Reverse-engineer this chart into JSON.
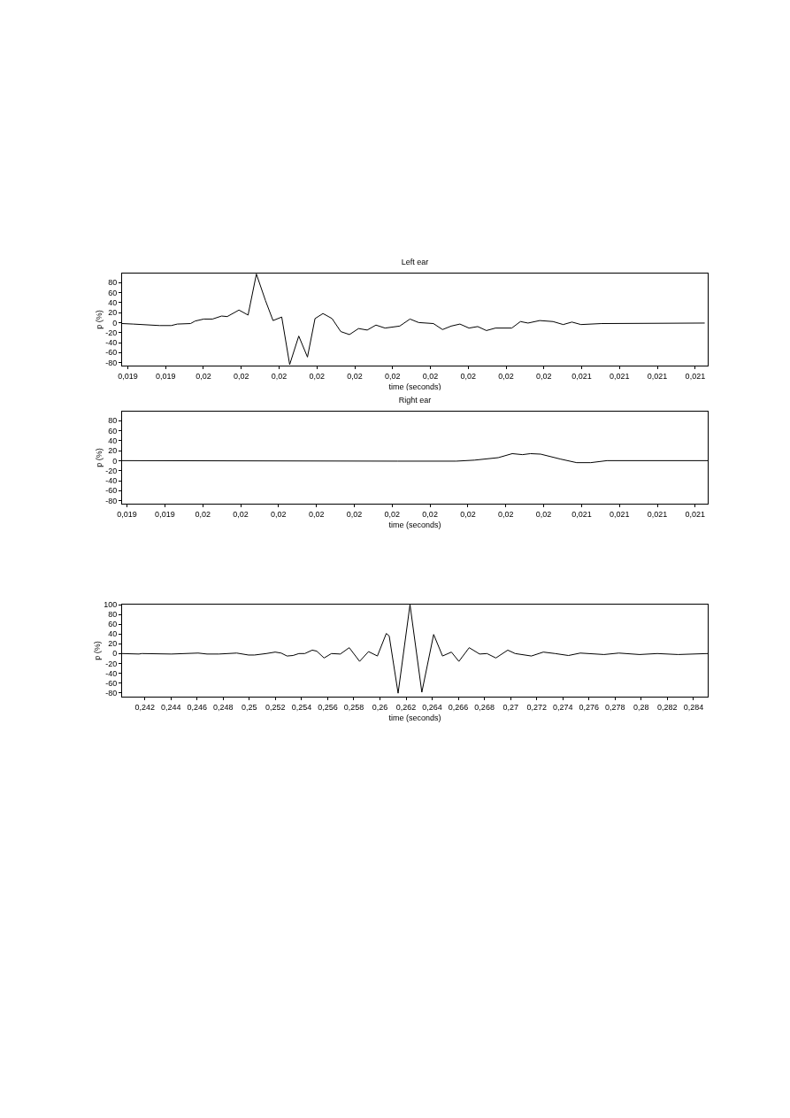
{
  "chart_data": [
    {
      "type": "line",
      "title": "Left ear",
      "xlabel": "time (seconds)",
      "ylabel": "p (%)",
      "color": "#000000",
      "x": [
        0.019335,
        0.019364,
        0.019434,
        0.019465,
        0.019481,
        0.019516,
        0.019528,
        0.019551,
        0.019574,
        0.019598,
        0.019613,
        0.019644,
        0.019668,
        0.01969,
        0.019714,
        0.019734,
        0.019757,
        0.019778,
        0.019802,
        0.019825,
        0.019845,
        0.019866,
        0.01989,
        0.019913,
        0.019936,
        0.01996,
        0.019983,
        0.020006,
        0.02003,
        0.020069,
        0.020096,
        0.020119,
        0.020158,
        0.020182,
        0.020205,
        0.020228,
        0.020252,
        0.020275,
        0.020298,
        0.020322,
        0.020365,
        0.020388,
        0.020408,
        0.020439,
        0.020474,
        0.020501,
        0.020524,
        0.020548,
        0.020602,
        0.020875
      ],
      "values": [
        -2,
        -3,
        -6,
        -6,
        -3,
        -2,
        3,
        7,
        7,
        13,
        12,
        25,
        15,
        97,
        44,
        4,
        11,
        -84,
        -27,
        -69,
        8,
        18,
        8,
        -18,
        -24,
        -12,
        -15,
        -5,
        -11,
        -7,
        7,
        0,
        -2,
        -14,
        -7,
        -3,
        -11,
        -8,
        -16,
        -11,
        -11,
        2,
        -1,
        4,
        2,
        -4,
        1,
        -4,
        -2,
        -1
      ],
      "xlim": [
        0.019335,
        0.020883
      ],
      "ylim": [
        -86,
        98
      ],
      "yticks": [
        -80,
        -60,
        -40,
        -20,
        0,
        20,
        40,
        60,
        80
      ],
      "xticks": [
        {
          "value": 0.01935,
          "label": "0,019"
        },
        {
          "value": 0.01945,
          "label": "0,019"
        },
        {
          "value": 0.01955,
          "label": "0,02"
        },
        {
          "value": 0.01965,
          "label": "0,02"
        },
        {
          "value": 0.01975,
          "label": "0,02"
        },
        {
          "value": 0.01985,
          "label": "0,02"
        },
        {
          "value": 0.01995,
          "label": "0,02"
        },
        {
          "value": 0.02005,
          "label": "0,02"
        },
        {
          "value": 0.02015,
          "label": "0,02"
        },
        {
          "value": 0.02025,
          "label": "0,02"
        },
        {
          "value": 0.02035,
          "label": "0,02"
        },
        {
          "value": 0.02045,
          "label": "0,02"
        },
        {
          "value": 0.02055,
          "label": "0,021"
        },
        {
          "value": 0.02065,
          "label": "0,021"
        },
        {
          "value": 0.02075,
          "label": "0,021"
        },
        {
          "value": 0.02085,
          "label": "0,021"
        }
      ]
    },
    {
      "type": "line",
      "title": "Right ear",
      "xlabel": "time (seconds)",
      "ylabel": "p (%)",
      "color": "#000000",
      "x": [
        0.019337,
        0.020065,
        0.020219,
        0.020267,
        0.02033,
        0.020367,
        0.020394,
        0.020415,
        0.020442,
        0.020495,
        0.020537,
        0.020574,
        0.020617,
        0.020883
      ],
      "values": [
        0,
        -1,
        -1,
        1,
        6,
        14,
        12,
        14,
        13,
        3,
        -4,
        -4,
        0,
        0
      ],
      "xlim": [
        0.019337,
        0.020883
      ],
      "ylim": [
        -86,
        98
      ],
      "yticks": [
        -80,
        -60,
        -40,
        -20,
        0,
        20,
        40,
        60,
        80
      ],
      "xticks": [
        {
          "value": 0.01935,
          "label": "0,019"
        },
        {
          "value": 0.01945,
          "label": "0,019"
        },
        {
          "value": 0.01955,
          "label": "0,02"
        },
        {
          "value": 0.01965,
          "label": "0,02"
        },
        {
          "value": 0.01975,
          "label": "0,02"
        },
        {
          "value": 0.01985,
          "label": "0,02"
        },
        {
          "value": 0.01995,
          "label": "0,02"
        },
        {
          "value": 0.02005,
          "label": "0,02"
        },
        {
          "value": 0.02015,
          "label": "0,02"
        },
        {
          "value": 0.02025,
          "label": "0,02"
        },
        {
          "value": 0.02035,
          "label": "0,02"
        },
        {
          "value": 0.02045,
          "label": "0,02"
        },
        {
          "value": 0.02055,
          "label": "0,021"
        },
        {
          "value": 0.02065,
          "label": "0,021"
        },
        {
          "value": 0.02075,
          "label": "0,021"
        },
        {
          "value": 0.02085,
          "label": "0,021"
        }
      ]
    },
    {
      "type": "line",
      "xlabel": "time (seconds)",
      "ylabel": "p (%)",
      "color": "#000000",
      "x": [
        0.24026,
        0.241551,
        0.241776,
        0.244041,
        0.246082,
        0.246762,
        0.247674,
        0.249034,
        0.249939,
        0.250395,
        0.2513,
        0.25198,
        0.252436,
        0.252885,
        0.25334,
        0.253796,
        0.254245,
        0.254817,
        0.255157,
        0.255722,
        0.256286,
        0.256967,
        0.257647,
        0.258443,
        0.259123,
        0.259804,
        0.260484,
        0.260708,
        0.261389,
        0.2623,
        0.263205,
        0.26411,
        0.26479,
        0.26547,
        0.266042,
        0.266831,
        0.267627,
        0.268192,
        0.268872,
        0.269784,
        0.270348,
        0.271593,
        0.272505,
        0.27341,
        0.27443,
        0.275335,
        0.277151,
        0.278287,
        0.279872,
        0.281233,
        0.282818,
        0.28509
      ],
      "values": [
        0,
        -1,
        0,
        -1,
        1,
        -1,
        -1,
        1,
        -3,
        -3,
        0,
        3,
        1,
        -5,
        -4,
        0,
        0,
        7,
        5,
        -9,
        0,
        -1,
        12,
        -16,
        4,
        -5,
        41,
        36,
        -81,
        100,
        -79,
        39,
        -5,
        3,
        -16,
        12,
        -1,
        0,
        -9,
        7,
        0,
        -5,
        3,
        0,
        -4,
        1,
        -2,
        1,
        -2,
        0,
        -2,
        0
      ],
      "xlim": [
        0.24026,
        0.28509
      ],
      "ylim": [
        -88,
        100
      ],
      "yticks": [
        -80,
        -60,
        -40,
        -20,
        0,
        20,
        40,
        60,
        80,
        100
      ],
      "xticks": [
        {
          "value": 0.242,
          "label": "0,242"
        },
        {
          "value": 0.244,
          "label": "0,244"
        },
        {
          "value": 0.246,
          "label": "0,246"
        },
        {
          "value": 0.248,
          "label": "0,248"
        },
        {
          "value": 0.25,
          "label": "0,25"
        },
        {
          "value": 0.252,
          "label": "0,252"
        },
        {
          "value": 0.254,
          "label": "0,254"
        },
        {
          "value": 0.256,
          "label": "0,256"
        },
        {
          "value": 0.258,
          "label": "0,258"
        },
        {
          "value": 0.26,
          "label": "0,26"
        },
        {
          "value": 0.262,
          "label": "0,262"
        },
        {
          "value": 0.264,
          "label": "0,264"
        },
        {
          "value": 0.266,
          "label": "0,266"
        },
        {
          "value": 0.268,
          "label": "0,268"
        },
        {
          "value": 0.27,
          "label": "0,27"
        },
        {
          "value": 0.272,
          "label": "0,272"
        },
        {
          "value": 0.274,
          "label": "0,274"
        },
        {
          "value": 0.276,
          "label": "0,276"
        },
        {
          "value": 0.278,
          "label": "0,278"
        },
        {
          "value": 0.28,
          "label": "0,28"
        },
        {
          "value": 0.282,
          "label": "0,282"
        },
        {
          "value": 0.284,
          "label": "0,284"
        }
      ]
    }
  ]
}
